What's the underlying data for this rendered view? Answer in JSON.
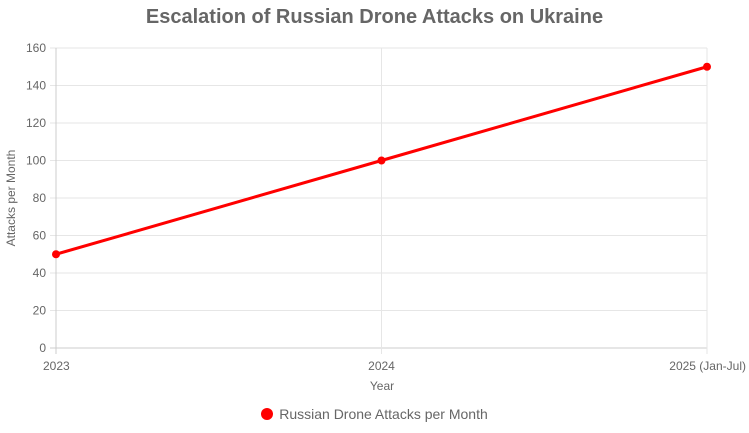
{
  "chart_data": {
    "type": "line",
    "title": "Escalation of Russian Drone Attacks on Ukraine",
    "xlabel": "Year",
    "ylabel": "Attacks per Month",
    "categories": [
      "2023",
      "2024",
      "2025 (Jan-Jul)"
    ],
    "series": [
      {
        "name": "Russian Drone Attacks per Month",
        "values": [
          50,
          100,
          150
        ],
        "color": "#ff0000"
      }
    ],
    "ylim": [
      0,
      160
    ],
    "yticks": [
      "0",
      "20",
      "40",
      "60",
      "80",
      "100",
      "120",
      "140",
      "160"
    ],
    "grid": true,
    "legend_position": "bottom"
  }
}
